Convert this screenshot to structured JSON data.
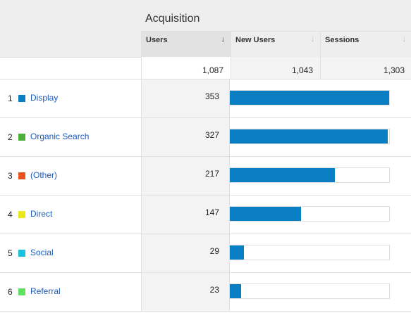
{
  "header": {
    "group_title": "Acquisition"
  },
  "columns": [
    {
      "label": "Users",
      "sort_icon": "arrow-down-icon",
      "active": true
    },
    {
      "label": "New Users",
      "sort_icon": "arrow-down-icon",
      "active": false
    },
    {
      "label": "Sessions",
      "sort_icon": "arrow-down-icon",
      "active": false
    }
  ],
  "totals": {
    "users": "1,087",
    "new_users": "1,043",
    "sessions": "1,303"
  },
  "rows": [
    {
      "rank": "1",
      "channel": "Display",
      "color": "#0a7ec2",
      "users": "353",
      "users_value": 353
    },
    {
      "rank": "2",
      "channel": "Organic Search",
      "color": "#4caf3a",
      "users": "327",
      "users_value": 327
    },
    {
      "rank": "3",
      "channel": "(Other)",
      "color": "#e8521e",
      "users": "217",
      "users_value": 217
    },
    {
      "rank": "4",
      "channel": "Direct",
      "color": "#e8e81b",
      "users": "147",
      "users_value": 147
    },
    {
      "rank": "5",
      "channel": "Social",
      "color": "#1ec0e0",
      "users": "29",
      "users_value": 29
    },
    {
      "rank": "6",
      "channel": "Referral",
      "color": "#5fe05f",
      "users": "23",
      "users_value": 23
    }
  ],
  "bar_scale_max": 1087
}
